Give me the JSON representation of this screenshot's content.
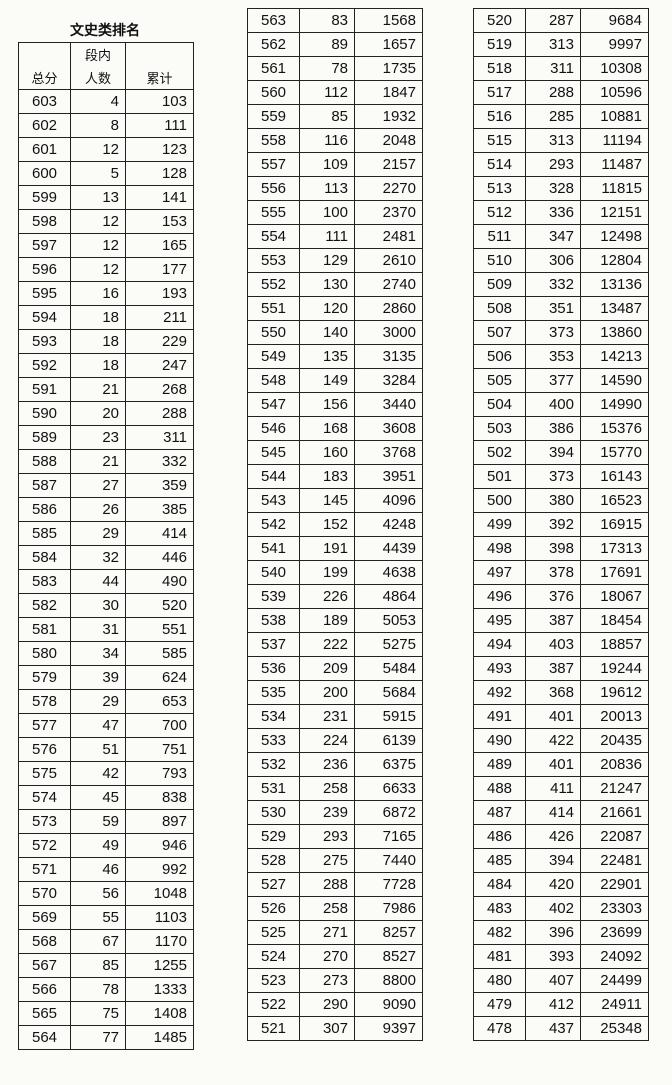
{
  "title": "文史类排名",
  "headers": {
    "score": "总分",
    "count_top": "段内",
    "count": "人数",
    "cumulative": "累计"
  },
  "columns": [
    [
      [
        603,
        4,
        103
      ],
      [
        602,
        8,
        111
      ],
      [
        601,
        12,
        123
      ],
      [
        600,
        5,
        128
      ],
      [
        599,
        13,
        141
      ],
      [
        598,
        12,
        153
      ],
      [
        597,
        12,
        165
      ],
      [
        596,
        12,
        177
      ],
      [
        595,
        16,
        193
      ],
      [
        594,
        18,
        211
      ],
      [
        593,
        18,
        229
      ],
      [
        592,
        18,
        247
      ],
      [
        591,
        21,
        268
      ],
      [
        590,
        20,
        288
      ],
      [
        589,
        23,
        311
      ],
      [
        588,
        21,
        332
      ],
      [
        587,
        27,
        359
      ],
      [
        586,
        26,
        385
      ],
      [
        585,
        29,
        414
      ],
      [
        584,
        32,
        446
      ],
      [
        583,
        44,
        490
      ],
      [
        582,
        30,
        520
      ],
      [
        581,
        31,
        551
      ],
      [
        580,
        34,
        585
      ],
      [
        579,
        39,
        624
      ],
      [
        578,
        29,
        653
      ],
      [
        577,
        47,
        700
      ],
      [
        576,
        51,
        751
      ],
      [
        575,
        42,
        793
      ],
      [
        574,
        45,
        838
      ],
      [
        573,
        59,
        897
      ],
      [
        572,
        49,
        946
      ],
      [
        571,
        46,
        992
      ],
      [
        570,
        56,
        1048
      ],
      [
        569,
        55,
        1103
      ],
      [
        568,
        67,
        1170
      ],
      [
        567,
        85,
        1255
      ],
      [
        566,
        78,
        1333
      ],
      [
        565,
        75,
        1408
      ],
      [
        564,
        77,
        1485
      ]
    ],
    [
      [
        563,
        83,
        1568
      ],
      [
        562,
        89,
        1657
      ],
      [
        561,
        78,
        1735
      ],
      [
        560,
        112,
        1847
      ],
      [
        559,
        85,
        1932
      ],
      [
        558,
        116,
        2048
      ],
      [
        557,
        109,
        2157
      ],
      [
        556,
        113,
        2270
      ],
      [
        555,
        100,
        2370
      ],
      [
        554,
        111,
        2481
      ],
      [
        553,
        129,
        2610
      ],
      [
        552,
        130,
        2740
      ],
      [
        551,
        120,
        2860
      ],
      [
        550,
        140,
        3000
      ],
      [
        549,
        135,
        3135
      ],
      [
        548,
        149,
        3284
      ],
      [
        547,
        156,
        3440
      ],
      [
        546,
        168,
        3608
      ],
      [
        545,
        160,
        3768
      ],
      [
        544,
        183,
        3951
      ],
      [
        543,
        145,
        4096
      ],
      [
        542,
        152,
        4248
      ],
      [
        541,
        191,
        4439
      ],
      [
        540,
        199,
        4638
      ],
      [
        539,
        226,
        4864
      ],
      [
        538,
        189,
        5053
      ],
      [
        537,
        222,
        5275
      ],
      [
        536,
        209,
        5484
      ],
      [
        535,
        200,
        5684
      ],
      [
        534,
        231,
        5915
      ],
      [
        533,
        224,
        6139
      ],
      [
        532,
        236,
        6375
      ],
      [
        531,
        258,
        6633
      ],
      [
        530,
        239,
        6872
      ],
      [
        529,
        293,
        7165
      ],
      [
        528,
        275,
        7440
      ],
      [
        527,
        288,
        7728
      ],
      [
        526,
        258,
        7986
      ],
      [
        525,
        271,
        8257
      ],
      [
        524,
        270,
        8527
      ],
      [
        523,
        273,
        8800
      ],
      [
        522,
        290,
        9090
      ],
      [
        521,
        307,
        9397
      ]
    ],
    [
      [
        520,
        287,
        9684
      ],
      [
        519,
        313,
        9997
      ],
      [
        518,
        311,
        10308
      ],
      [
        517,
        288,
        10596
      ],
      [
        516,
        285,
        10881
      ],
      [
        515,
        313,
        11194
      ],
      [
        514,
        293,
        11487
      ],
      [
        513,
        328,
        11815
      ],
      [
        512,
        336,
        12151
      ],
      [
        511,
        347,
        12498
      ],
      [
        510,
        306,
        12804
      ],
      [
        509,
        332,
        13136
      ],
      [
        508,
        351,
        13487
      ],
      [
        507,
        373,
        13860
      ],
      [
        506,
        353,
        14213
      ],
      [
        505,
        377,
        14590
      ],
      [
        504,
        400,
        14990
      ],
      [
        503,
        386,
        15376
      ],
      [
        502,
        394,
        15770
      ],
      [
        501,
        373,
        16143
      ],
      [
        500,
        380,
        16523
      ],
      [
        499,
        392,
        16915
      ],
      [
        498,
        398,
        17313
      ],
      [
        497,
        378,
        17691
      ],
      [
        496,
        376,
        18067
      ],
      [
        495,
        387,
        18454
      ],
      [
        494,
        403,
        18857
      ],
      [
        493,
        387,
        19244
      ],
      [
        492,
        368,
        19612
      ],
      [
        491,
        401,
        20013
      ],
      [
        490,
        422,
        20435
      ],
      [
        489,
        401,
        20836
      ],
      [
        488,
        411,
        21247
      ],
      [
        487,
        414,
        21661
      ],
      [
        486,
        426,
        22087
      ],
      [
        485,
        394,
        22481
      ],
      [
        484,
        420,
        22901
      ],
      [
        483,
        402,
        23303
      ],
      [
        482,
        396,
        23699
      ],
      [
        481,
        393,
        24092
      ],
      [
        480,
        407,
        24499
      ],
      [
        479,
        412,
        24911
      ],
      [
        478,
        437,
        25348
      ]
    ]
  ]
}
